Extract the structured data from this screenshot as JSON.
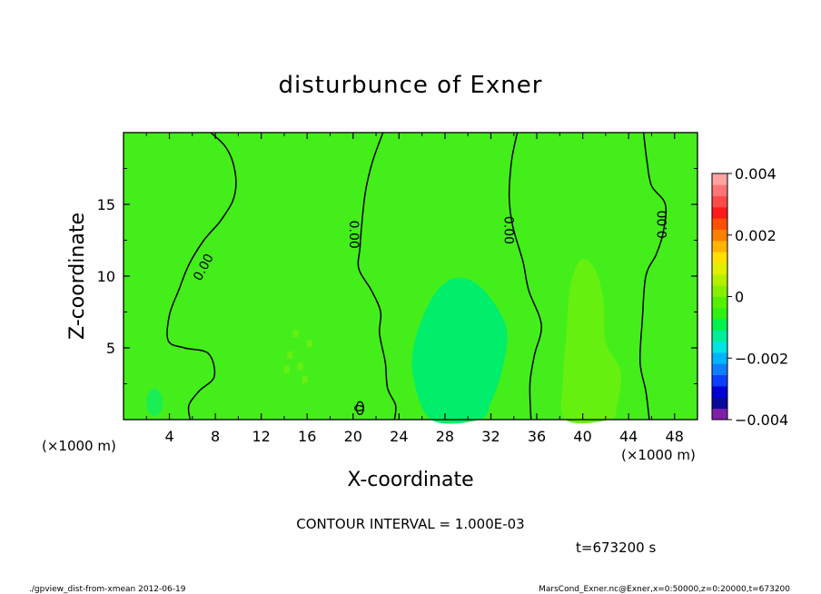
{
  "chart_data": {
    "type": "heatmap",
    "title": "disturbunce of Exner",
    "xlabel": "X-coordinate",
    "ylabel": "Z-coordinate",
    "x_unit": "(×1000 m)",
    "z_unit": "(×1000 m)",
    "xlim": [
      0,
      50
    ],
    "ylim": [
      0,
      20
    ],
    "x_ticks": [
      4,
      8,
      12,
      16,
      20,
      24,
      28,
      32,
      36,
      40,
      44,
      48
    ],
    "y_ticks": [
      5,
      10,
      15
    ],
    "x_tick_labels": [
      "4",
      "8",
      "12",
      "16",
      "20",
      "24",
      "28",
      "32",
      "36",
      "40",
      "44",
      "48"
    ],
    "y_tick_labels": [
      "5",
      "10",
      "15"
    ],
    "contour_interval_text": "CONTOUR INTERVAL = 1.000E-03",
    "time_text": "t=673200 s",
    "contour_label": "0.00",
    "small_contour_label": "0",
    "colorbar": {
      "range": [
        -0.004,
        0.004
      ],
      "colors": [
        "#7f1fa8",
        "#0a0a9a",
        "#0000d6",
        "#0a3fff",
        "#0f7fff",
        "#00b4ff",
        "#00e4e4",
        "#00ee9a",
        "#00f050",
        "#30f010",
        "#55f000",
        "#85f000",
        "#b4f000",
        "#e0f000",
        "#ffe000",
        "#ffb400",
        "#ff7f00",
        "#ff4f00",
        "#ff1a1a",
        "#ff4a4a",
        "#ff7474",
        "#ffa3a3"
      ],
      "tick_values": [
        -0.004,
        -0.002,
        0,
        0.002,
        0.004
      ],
      "tick_labels": [
        "−0.004",
        "−0.002",
        "0",
        "0.002",
        "0.004"
      ]
    },
    "regions": {
      "background": "#44ee1a",
      "negative_region": "#00ee6a",
      "positive_region": "#66f010",
      "small_negative": "#1aee55"
    }
  },
  "footer": {
    "left": "./gpview_dist-from-xmean  2012-06-19",
    "right": "MarsCond_Exner.nc@Exner,x=0:50000,z=0:20000,t=673200"
  }
}
